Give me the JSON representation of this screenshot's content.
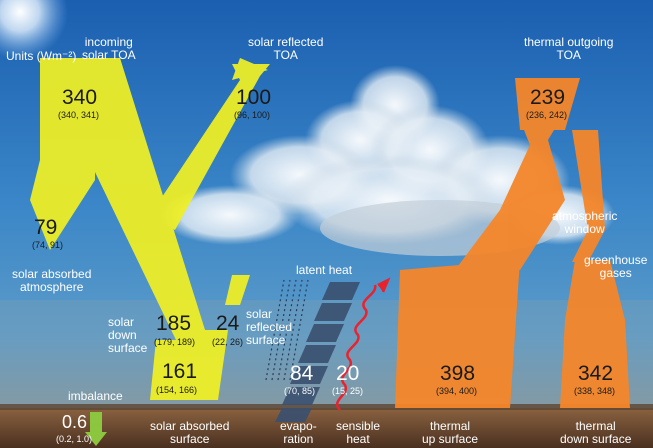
{
  "units": "Units (Wm⁻²)",
  "colors": {
    "solar": "#f0f024",
    "thermal": "#f5862a",
    "imbalance": "#8cc63f",
    "heat": "#e8232e",
    "sky_top": "#1b5fb0",
    "ground": "#6b4a30"
  },
  "flows": {
    "incoming_solar_toa": {
      "label_line1": "incoming",
      "label_line2": "solar TOA",
      "value": "340",
      "range": "(340, 341)"
    },
    "solar_reflected_toa": {
      "label_line1": "solar reflected",
      "label_line2": "TOA",
      "value": "100",
      "range": "(96, 100)"
    },
    "thermal_outgoing_toa": {
      "label_line1": "thermal outgoing",
      "label_line2": "TOA",
      "value": "239",
      "range": "(236, 242)"
    },
    "solar_absorbed_atmosphere": {
      "label_line1": "solar absorbed",
      "label_line2": "atmosphere",
      "value": "79",
      "range": "(74, 91)"
    },
    "atmospheric_window": {
      "label_line1": "atmospheric",
      "label_line2": "window"
    },
    "greenhouse_gases": {
      "label_line1": "greenhouse",
      "label_line2": "gases"
    },
    "latent_heat": {
      "label": "latent heat"
    },
    "solar_down_surface": {
      "label_line1": "solar",
      "label_line2": "down",
      "label_line3": "surface",
      "value": "185",
      "range": "(179, 189)"
    },
    "solar_reflected_surface": {
      "label_line1": "solar",
      "label_line2": "reflected",
      "label_line3": "surface",
      "value": "24",
      "range": "(22, 26)"
    },
    "solar_absorbed_surface": {
      "label_line1": "solar absorbed",
      "label_line2": "surface",
      "value": "161",
      "range": "(154, 166)"
    },
    "evaporation": {
      "label_line1": "evapo-",
      "label_line2": "ration",
      "value": "84",
      "range": "(70, 85)"
    },
    "sensible_heat": {
      "label_line1": "sensible",
      "label_line2": "heat",
      "value": "20",
      "range": "(15, 25)"
    },
    "thermal_up_surface": {
      "label_line1": "thermal",
      "label_line2": "up surface",
      "value": "398",
      "range": "(394, 400)"
    },
    "thermal_down_surface": {
      "label_line1": "thermal",
      "label_line2": "down surface",
      "value": "342",
      "range": "(338, 348)"
    },
    "imbalance": {
      "label": "imbalance",
      "value": "0.6",
      "range": "(0.2, 1.0)"
    }
  }
}
